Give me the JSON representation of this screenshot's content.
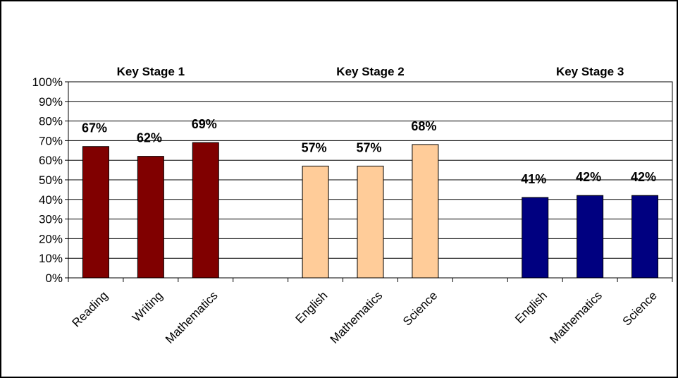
{
  "chart_data": {
    "type": "bar",
    "ylim": [
      0,
      100
    ],
    "y_ticks": [
      "0%",
      "10%",
      "20%",
      "30%",
      "40%",
      "50%",
      "60%",
      "70%",
      "80%",
      "90%",
      "100%"
    ],
    "grid": true,
    "groups": [
      {
        "title": "Key Stage 1",
        "color": "#800000",
        "categories": [
          "Reading",
          "Writing",
          "Mathematics"
        ],
        "values": [
          67,
          62,
          69
        ],
        "labels": [
          "67%",
          "62%",
          "69%"
        ]
      },
      {
        "title": "Key Stage 2",
        "color": "#FFCC99",
        "categories": [
          "English",
          "Mathematics",
          "Science"
        ],
        "values": [
          57,
          57,
          68
        ],
        "labels": [
          "57%",
          "57%",
          "68%"
        ]
      },
      {
        "title": "Key Stage 3",
        "color": "#000080",
        "categories": [
          "English",
          "Mathematics",
          "Science"
        ],
        "values": [
          41,
          42,
          42
        ],
        "labels": [
          "41%",
          "42%",
          "42%"
        ]
      }
    ]
  }
}
